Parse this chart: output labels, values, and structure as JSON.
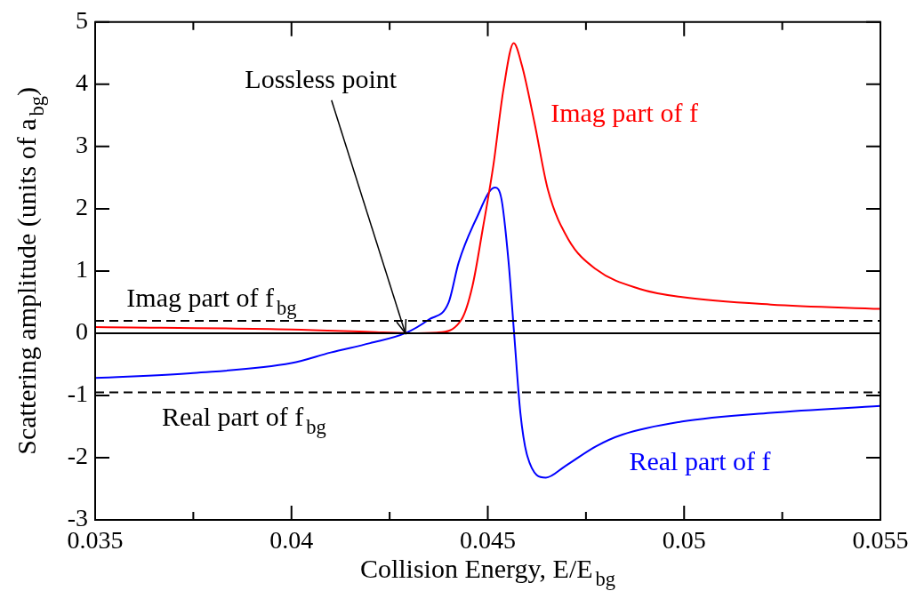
{
  "chart_data": {
    "type": "line",
    "xlabel": "Collision Energy, E/E$_{bg}$",
    "ylabel": "Scattering amplitude (units of a$_{bg}$)",
    "xlim": [
      0.035,
      0.055
    ],
    "xticks": [
      0.035,
      {
        "value": 0.0375,
        "label": null
      },
      0.04,
      {
        "value": 0.0425,
        "label": null
      },
      0.045,
      {
        "value": 0.0475,
        "label": null
      },
      0.05,
      {
        "value": 0.0525,
        "label": null
      },
      0.055
    ],
    "ylim": [
      -3,
      5
    ],
    "yticks": [
      -3,
      -2,
      -1,
      0,
      1,
      2,
      3,
      4,
      5
    ],
    "grid": false,
    "legend": false,
    "marker": "none",
    "series": [
      {
        "name": "Imag part of f",
        "color": "#ff0000",
        "line_style": "solid",
        "x": [
          0.035,
          0.04,
          0.042,
          0.043,
          0.0437,
          0.04433,
          0.04461,
          0.04487,
          0.04514,
          0.0454,
          0.04566,
          0.04587,
          0.04619,
          0.04653,
          0.04705,
          0.04775,
          0.04888,
          0.04995,
          0.05221,
          0.055
        ],
        "values": [
          0.1,
          0.06,
          0.02,
          0,
          0.01,
          0.22,
          0.76,
          1.67,
          2.69,
          3.92,
          4.66,
          4.3,
          3.38,
          2.31,
          1.51,
          1.03,
          0.71,
          0.58,
          0.46,
          0.39
        ]
      },
      {
        "name": "Real part of f",
        "color": "#0000ff",
        "line_style": "solid",
        "x": [
          0.035,
          0.0375,
          0.04,
          0.041,
          0.042,
          0.0429,
          0.0435,
          0.044,
          0.04426,
          0.0447,
          0.04518,
          0.04535,
          0.04553,
          0.04567,
          0.04583,
          0.04601,
          0.04648,
          0.04696,
          0.04775,
          0.04843,
          0.04995,
          0.05221,
          0.055
        ],
        "values": [
          -0.72,
          -0.64,
          -0.48,
          -0.31,
          -0.16,
          0,
          0.22,
          0.49,
          1.14,
          1.83,
          2.34,
          2.15,
          1.14,
          0,
          -1.28,
          -1.98,
          -2.32,
          -2.14,
          -1.82,
          -1.63,
          -1.42,
          -1.28,
          -1.17
        ]
      }
    ],
    "ref_lines": [
      {
        "axis": "y",
        "value": 0,
        "color": "#000000",
        "line_style": "solid"
      },
      {
        "axis": "y",
        "value": 0.2,
        "color": "#000000",
        "line_style": "dashed",
        "label": "Imag part of f$_{bg}$"
      },
      {
        "axis": "y",
        "value": -0.95,
        "color": "#000000",
        "line_style": "dashed",
        "label": "Real part of f$_{bg}$"
      }
    ],
    "annotations": [
      {
        "text": "Lossless point",
        "x": 0.0429,
        "y": 0
      }
    ]
  }
}
